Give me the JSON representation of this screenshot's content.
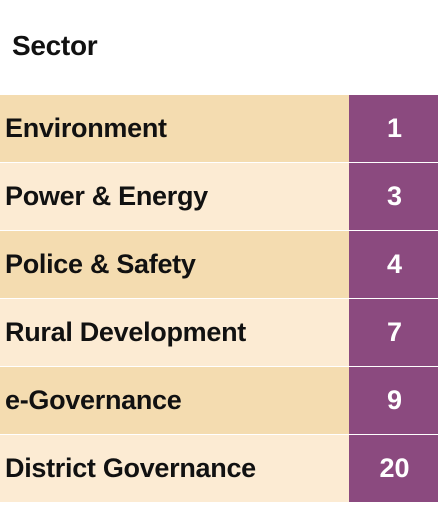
{
  "header": {
    "title": "Sector"
  },
  "colors": {
    "row_odd": "#f4dcb0",
    "row_even": "#fcebd3",
    "value_bg": "#8b4a7f",
    "value_text": "#ffffff"
  },
  "rows": [
    {
      "sector": "Environment",
      "value": "1"
    },
    {
      "sector": "Power & Energy",
      "value": "3"
    },
    {
      "sector": "Police & Safety",
      "value": "4"
    },
    {
      "sector": "Rural Development",
      "value": "7"
    },
    {
      "sector": "e-Governance",
      "value": "9"
    },
    {
      "sector": "District Governance",
      "value": "20"
    }
  ]
}
